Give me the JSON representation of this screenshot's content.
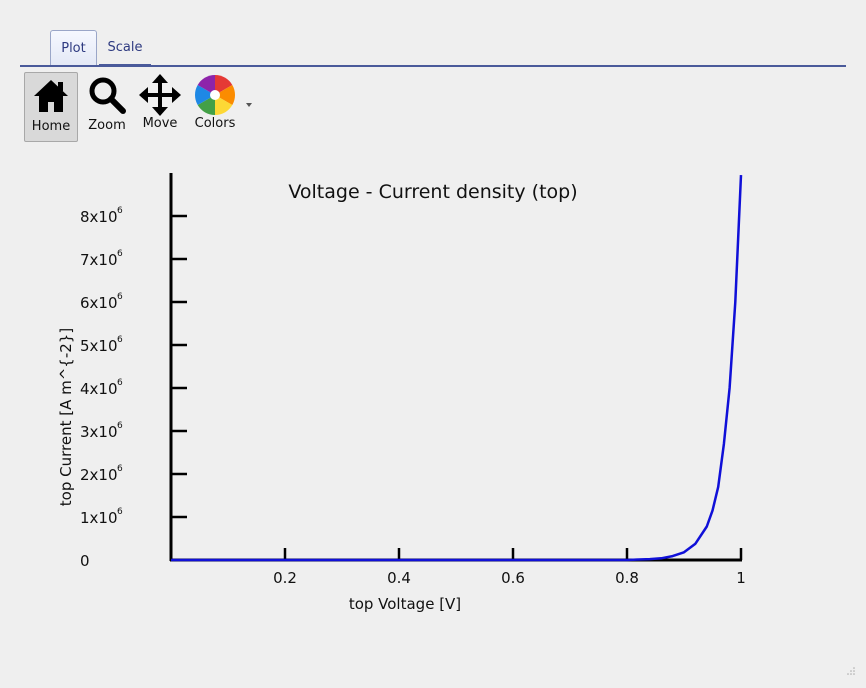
{
  "tabs": [
    {
      "label": "Plot",
      "active": true
    },
    {
      "label": "Scale",
      "active": false
    }
  ],
  "toolbar": {
    "home": {
      "label": "Home",
      "icon": "home-icon",
      "active": true
    },
    "zoom": {
      "label": "Zoom",
      "icon": "magnifier-icon"
    },
    "move": {
      "label": "Move",
      "icon": "move-arrows-icon"
    },
    "colors": {
      "label": "Colors",
      "icon": "color-wheel-icon"
    }
  },
  "chart_data": {
    "type": "line",
    "title": "Voltage - Current density (top)",
    "xlabel": "top Voltage [V]",
    "ylabel": "top Current [A m^{-2}]",
    "xlim": [
      0.0,
      1.0
    ],
    "ylim": [
      0,
      9000000
    ],
    "xticks": [
      {
        "value": 0.2,
        "label": "0.2"
      },
      {
        "value": 0.4,
        "label": "0.4"
      },
      {
        "value": 0.6,
        "label": "0.6"
      },
      {
        "value": 0.8,
        "label": "0.8"
      },
      {
        "value": 1.0,
        "label": "1"
      }
    ],
    "yticks": [
      {
        "value": 0,
        "mant": "0",
        "exp": ""
      },
      {
        "value": 1000000,
        "mant": "1x10",
        "exp": "6"
      },
      {
        "value": 2000000,
        "mant": "2x10",
        "exp": "6"
      },
      {
        "value": 3000000,
        "mant": "3x10",
        "exp": "6"
      },
      {
        "value": 4000000,
        "mant": "4x10",
        "exp": "6"
      },
      {
        "value": 5000000,
        "mant": "5x10",
        "exp": "6"
      },
      {
        "value": 6000000,
        "mant": "6x10",
        "exp": "6"
      },
      {
        "value": 7000000,
        "mant": "7x10",
        "exp": "6"
      },
      {
        "value": 8000000,
        "mant": "8x10",
        "exp": "6"
      }
    ],
    "grid": false,
    "series": [
      {
        "color": "#1010d8",
        "x": [
          0.0,
          0.2,
          0.4,
          0.6,
          0.8,
          0.84,
          0.86,
          0.88,
          0.9,
          0.92,
          0.94,
          0.95,
          0.96,
          0.97,
          0.98,
          0.99,
          1.0
        ],
        "y": [
          0,
          0,
          0,
          0,
          0,
          20000,
          40000,
          90000,
          180000,
          380000,
          780000,
          1150000,
          1700000,
          2700000,
          4000000,
          6000000,
          8950000
        ]
      }
    ]
  }
}
